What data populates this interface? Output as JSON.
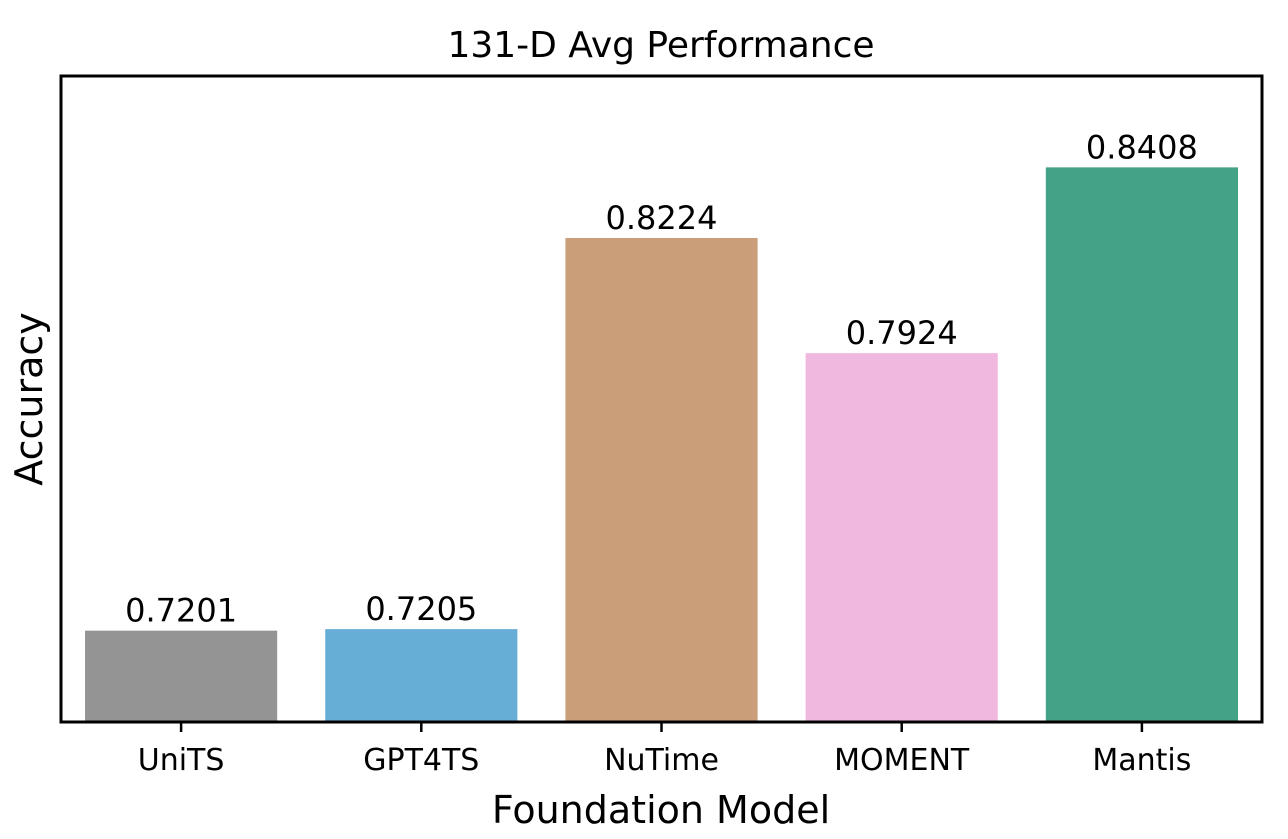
{
  "chart_data": {
    "type": "bar",
    "title": "131-D Avg Performance",
    "xlabel": "Foundation Model",
    "ylabel": "Accuracy",
    "categories": [
      "UniTS",
      "GPT4TS",
      "NuTime",
      "MOMENT",
      "Mantis"
    ],
    "values": [
      0.7201,
      0.7205,
      0.8224,
      0.7924,
      0.8408
    ],
    "value_labels": [
      "0.7201",
      "0.7205",
      "0.8224",
      "0.7924",
      "0.8408"
    ],
    "colors": [
      "#949494",
      "#67AED6",
      "#CA9E78",
      "#F0B8DF",
      "#44A287"
    ],
    "ylim": [
      0.6963,
      0.8646
    ],
    "grid": false,
    "legend": "none"
  }
}
